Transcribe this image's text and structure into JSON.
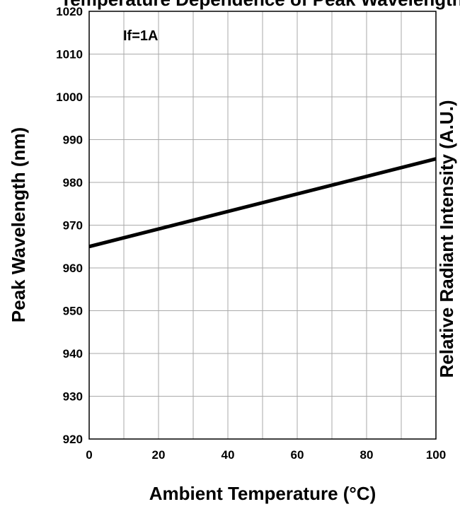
{
  "chart_data": {
    "type": "line",
    "title": "Temperature Dependence of Peak Wavelength",
    "xlabel": "Ambient Temperature (°C)",
    "ylabel": "Peak Wavelength (nm)",
    "y2label": "Relative Radiant Intensity (A.U.)",
    "annotation": "If=1A",
    "xlim": [
      0,
      100
    ],
    "ylim": [
      920,
      1020
    ],
    "x_ticks": [
      0,
      20,
      40,
      60,
      80,
      100
    ],
    "y_ticks": [
      920,
      930,
      940,
      950,
      960,
      970,
      980,
      990,
      1000,
      1010,
      1020
    ],
    "grid": true,
    "series": [
      {
        "x": [
          0,
          100
        ],
        "y": [
          965,
          985.5
        ]
      }
    ],
    "colors": {
      "line": "#000000",
      "grid": "#aaaaaa",
      "frame": "#000000"
    }
  }
}
